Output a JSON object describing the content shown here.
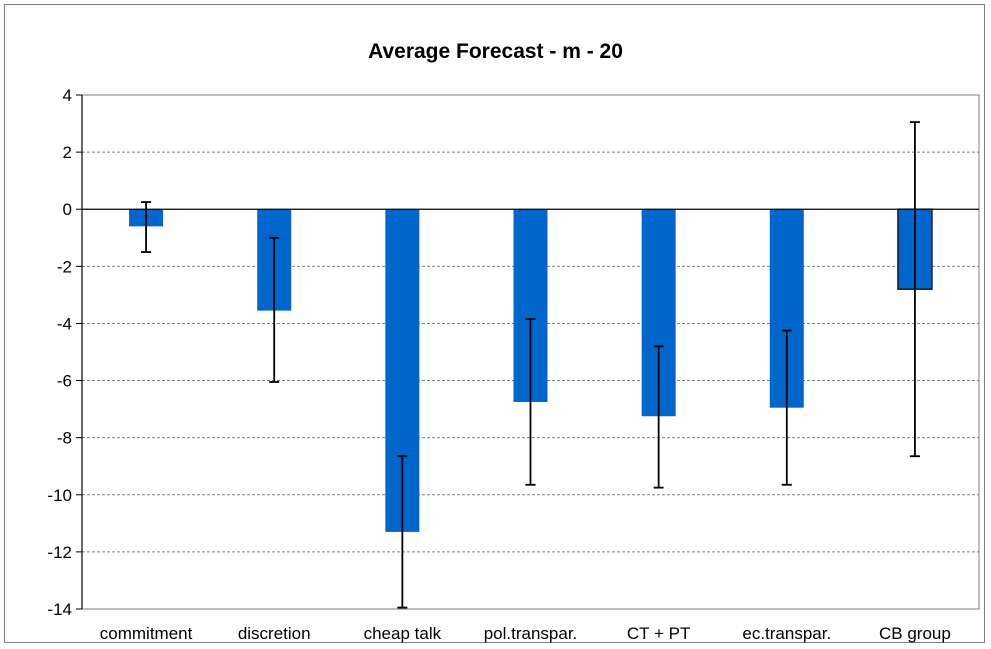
{
  "chart_data": {
    "type": "bar",
    "title": "Average Forecast - m  - 20",
    "xlabel": "",
    "ylabel": "",
    "ylim": [
      -14,
      4
    ],
    "yticks": [
      4,
      2,
      0,
      -2,
      -4,
      -6,
      -8,
      -10,
      -12,
      -14
    ],
    "ytick_labels": [
      "4",
      "2",
      "0",
      "-2",
      "-4",
      "-6",
      "-8",
      "-10",
      "-12",
      "-14"
    ],
    "grid": "horizontal dashed",
    "legend": "none",
    "categories": [
      "commitment",
      "discretion",
      "cheap talk",
      "pol.transpar.",
      "CT + PT",
      "ec.transpar.",
      "CB group"
    ],
    "series": [
      {
        "values": [
          -0.6,
          -3.55,
          -11.3,
          -6.75,
          -7.25,
          -6.95,
          -2.8
        ],
        "error_low": [
          -1.5,
          -6.05,
          -13.95,
          -9.65,
          -9.75,
          -9.65,
          -8.65
        ],
        "error_high": [
          0.25,
          -1.0,
          -8.65,
          -3.85,
          -4.8,
          -4.25,
          3.05
        ],
        "color": "#0066cc"
      }
    ],
    "colors": {
      "bar": "#0066cc",
      "bar_outline_highlight": "#1a1a1a",
      "error_bar": "#000000",
      "axis": "#000000",
      "grid": "#808080"
    }
  }
}
